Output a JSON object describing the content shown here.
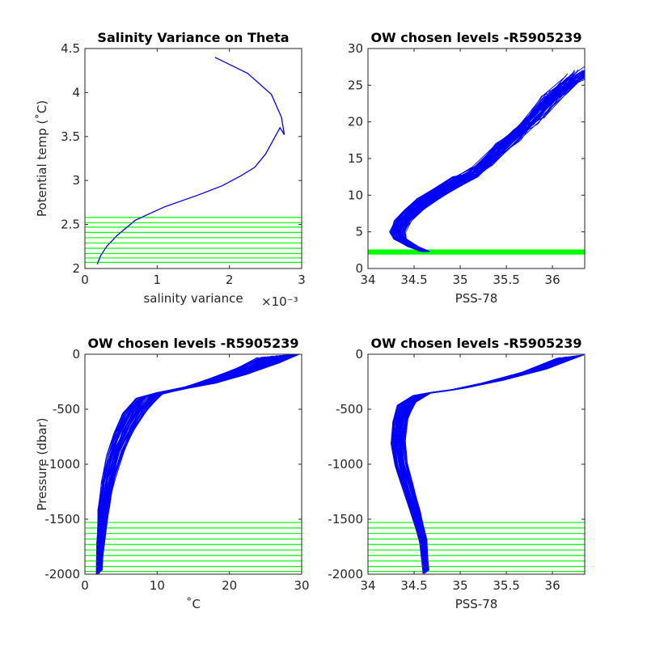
{
  "chart_data": [
    {
      "id": "p1",
      "type": "line",
      "title": "Salinity Variance on Theta",
      "xlabel": "salinity variance",
      "xexponent": "×10⁻³",
      "ylabel": "Potential temp (˚C)",
      "xlim": [
        0,
        3
      ],
      "ylim": [
        2,
        4.5
      ],
      "xticks": [
        0,
        1,
        2,
        3
      ],
      "yticks": [
        2,
        2.5,
        3,
        3.5,
        4,
        4.5
      ],
      "grid": false,
      "series": [
        {
          "color": "#0000ff",
          "x": [
            0.17,
            0.22,
            0.3,
            0.45,
            0.7,
            1.1,
            1.55,
            1.9,
            2.15,
            2.35,
            2.5,
            2.6,
            2.7,
            2.76,
            2.72,
            2.58,
            2.25,
            1.8
          ],
          "y": [
            2.05,
            2.15,
            2.25,
            2.38,
            2.55,
            2.7,
            2.83,
            2.94,
            3.05,
            3.15,
            3.3,
            3.45,
            3.6,
            3.52,
            3.72,
            3.98,
            4.22,
            4.4
          ]
        }
      ],
      "hlines": [
        2.07,
        2.12,
        2.17,
        2.23,
        2.29,
        2.35,
        2.41,
        2.47,
        2.52,
        2.58
      ],
      "hline_color": "#00ff00"
    },
    {
      "id": "p2",
      "type": "line",
      "title": "OW chosen levels -R5905239",
      "xlabel": "PSS-78",
      "ylabel": "",
      "xlim": [
        34,
        36.35
      ],
      "ylim": [
        0,
        30
      ],
      "xticks": [
        34,
        34.5,
        35,
        35.5,
        36
      ],
      "yticks": [
        0,
        5,
        10,
        15,
        20,
        25,
        30
      ],
      "grid": false,
      "series_color": "#0000ff",
      "hband": [
        1.9,
        2.6
      ],
      "hline_color": "#00ff00",
      "profile_template": {
        "s": [
          34.62,
          34.48,
          34.35,
          34.32,
          34.38,
          34.5,
          34.65,
          34.85,
          35.05,
          35.25,
          35.5,
          35.75,
          36.05,
          36.3
        ],
        "t": [
          2.3,
          3.0,
          4.0,
          5.0,
          6.5,
          8.0,
          9.5,
          11.0,
          12.5,
          14.0,
          17.0,
          20.0,
          24.0,
          26.5
        ]
      },
      "profile_count": 60
    },
    {
      "id": "p3",
      "type": "line",
      "title": "OW chosen levels -R5905239",
      "xlabel": "˚C",
      "ylabel": "Pressure (dbar)",
      "xlim": [
        0,
        30
      ],
      "ylim": [
        -2000,
        0
      ],
      "xticks": [
        0,
        10,
        20,
        30
      ],
      "yticks": [
        -2000,
        -1500,
        -1000,
        -500,
        0
      ],
      "grid": false,
      "series_color": "#0000ff",
      "hlines": [
        -1530,
        -1580,
        -1630,
        -1680,
        -1730,
        -1780,
        -1830,
        -1880,
        -1930,
        -1975
      ],
      "hline_color": "#00ff00",
      "profile_template": {
        "x": [
          2.0,
          2.2,
          2.6,
          3.2,
          4.2,
          5.5,
          7.0,
          9.0,
          12.0,
          16.0,
          20.0,
          24.0,
          27.0
        ],
        "p": [
          -1980,
          -1700,
          -1400,
          -1150,
          -900,
          -700,
          -520,
          -380,
          -330,
          -280,
          -200,
          -100,
          -10
        ]
      },
      "profile_count": 60
    },
    {
      "id": "p4",
      "type": "line",
      "title": "OW chosen levels -R5905239",
      "xlabel": "PSS-78",
      "ylabel": "",
      "xlim": [
        34,
        36.35
      ],
      "ylim": [
        -2000,
        0
      ],
      "xticks": [
        34,
        34.5,
        35,
        35.5,
        36
      ],
      "yticks": [
        -2000,
        -1500,
        -1000,
        -500,
        0
      ],
      "grid": false,
      "series_color": "#0000ff",
      "hlines": [
        -1530,
        -1580,
        -1630,
        -1680,
        -1730,
        -1780,
        -1830,
        -1880,
        -1930,
        -1975
      ],
      "hline_color": "#00ff00",
      "profile_template": {
        "s": [
          34.63,
          34.6,
          34.52,
          34.43,
          34.36,
          34.33,
          34.35,
          34.42,
          34.6,
          34.95,
          35.35,
          35.8,
          36.2
        ],
        "p": [
          -1980,
          -1700,
          -1450,
          -1200,
          -1000,
          -800,
          -600,
          -450,
          -360,
          -320,
          -250,
          -150,
          -20
        ]
      },
      "profile_count": 60
    }
  ]
}
